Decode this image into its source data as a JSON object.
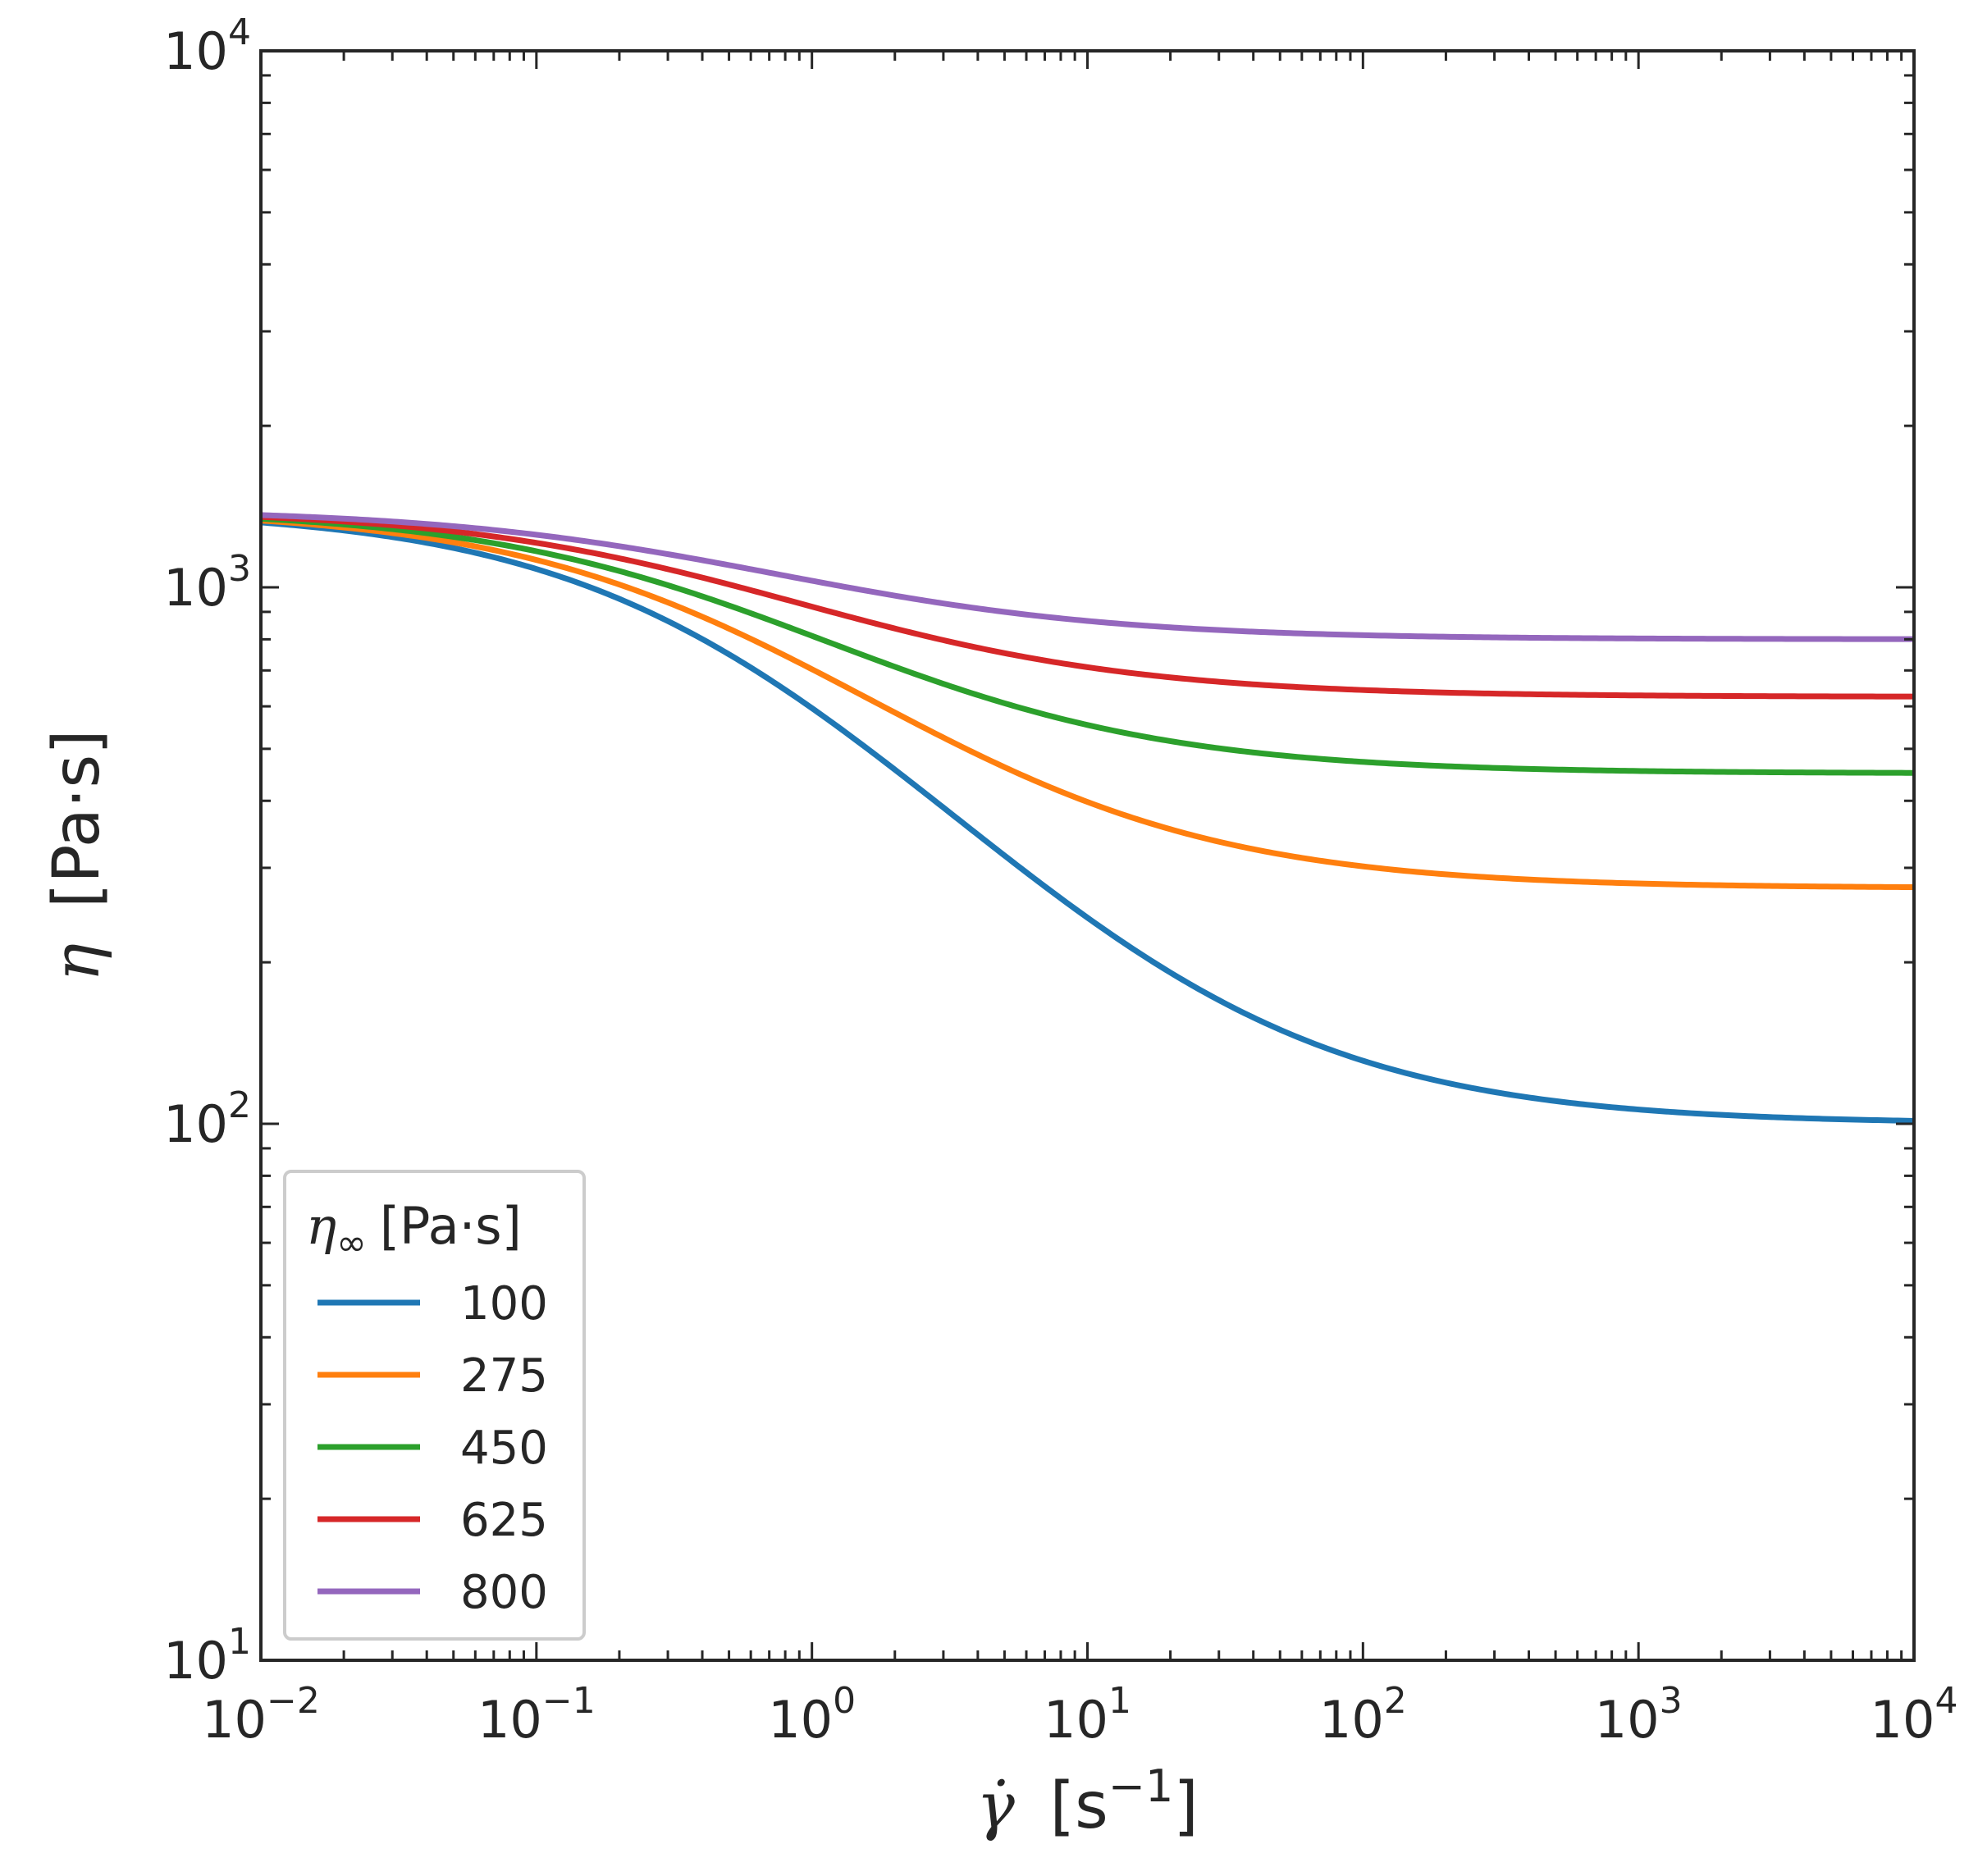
{
  "chart_data": {
    "type": "line",
    "title": "",
    "xscale": "log",
    "yscale": "log",
    "xlim": [
      0.01,
      10000
    ],
    "ylim": [
      10,
      10000
    ],
    "xlabel": {
      "symbol": "γ̇",
      "unit": "[s",
      "unit_exp": "−1",
      "unit_close": "]"
    },
    "ylabel": {
      "symbol": "η",
      "unit": "[Pa·s]"
    },
    "x_ticks": [
      {
        "value": 0.01,
        "base": "10",
        "exp": "−2"
      },
      {
        "value": 0.1,
        "base": "10",
        "exp": "−1"
      },
      {
        "value": 1,
        "base": "10",
        "exp": "0"
      },
      {
        "value": 10,
        "base": "10",
        "exp": "1"
      },
      {
        "value": 100,
        "base": "10",
        "exp": "2"
      },
      {
        "value": 1000,
        "base": "10",
        "exp": "3"
      },
      {
        "value": 10000,
        "base": "10",
        "exp": "4"
      }
    ],
    "y_ticks": [
      {
        "value": 10,
        "base": "10",
        "exp": "1"
      },
      {
        "value": 100,
        "base": "10",
        "exp": "2"
      },
      {
        "value": 1000,
        "base": "10",
        "exp": "3"
      },
      {
        "value": 10000,
        "base": "10",
        "exp": "4"
      }
    ],
    "legend": {
      "title_symbol": "η",
      "title_sub": "∞",
      "title_unit": "[Pa·s]",
      "location": "lower-left"
    },
    "model": {
      "eta0": 1400,
      "lambda": 2.0,
      "n": 0.3
    },
    "series": [
      {
        "name": "100",
        "eta_inf": 100,
        "color": "#1f77b4"
      },
      {
        "name": "275",
        "eta_inf": 275,
        "color": "#ff7f0e"
      },
      {
        "name": "450",
        "eta_inf": 450,
        "color": "#2ca02c"
      },
      {
        "name": "625",
        "eta_inf": 625,
        "color": "#d62728"
      },
      {
        "name": "800",
        "eta_inf": 800,
        "color": "#9467bd"
      }
    ]
  }
}
